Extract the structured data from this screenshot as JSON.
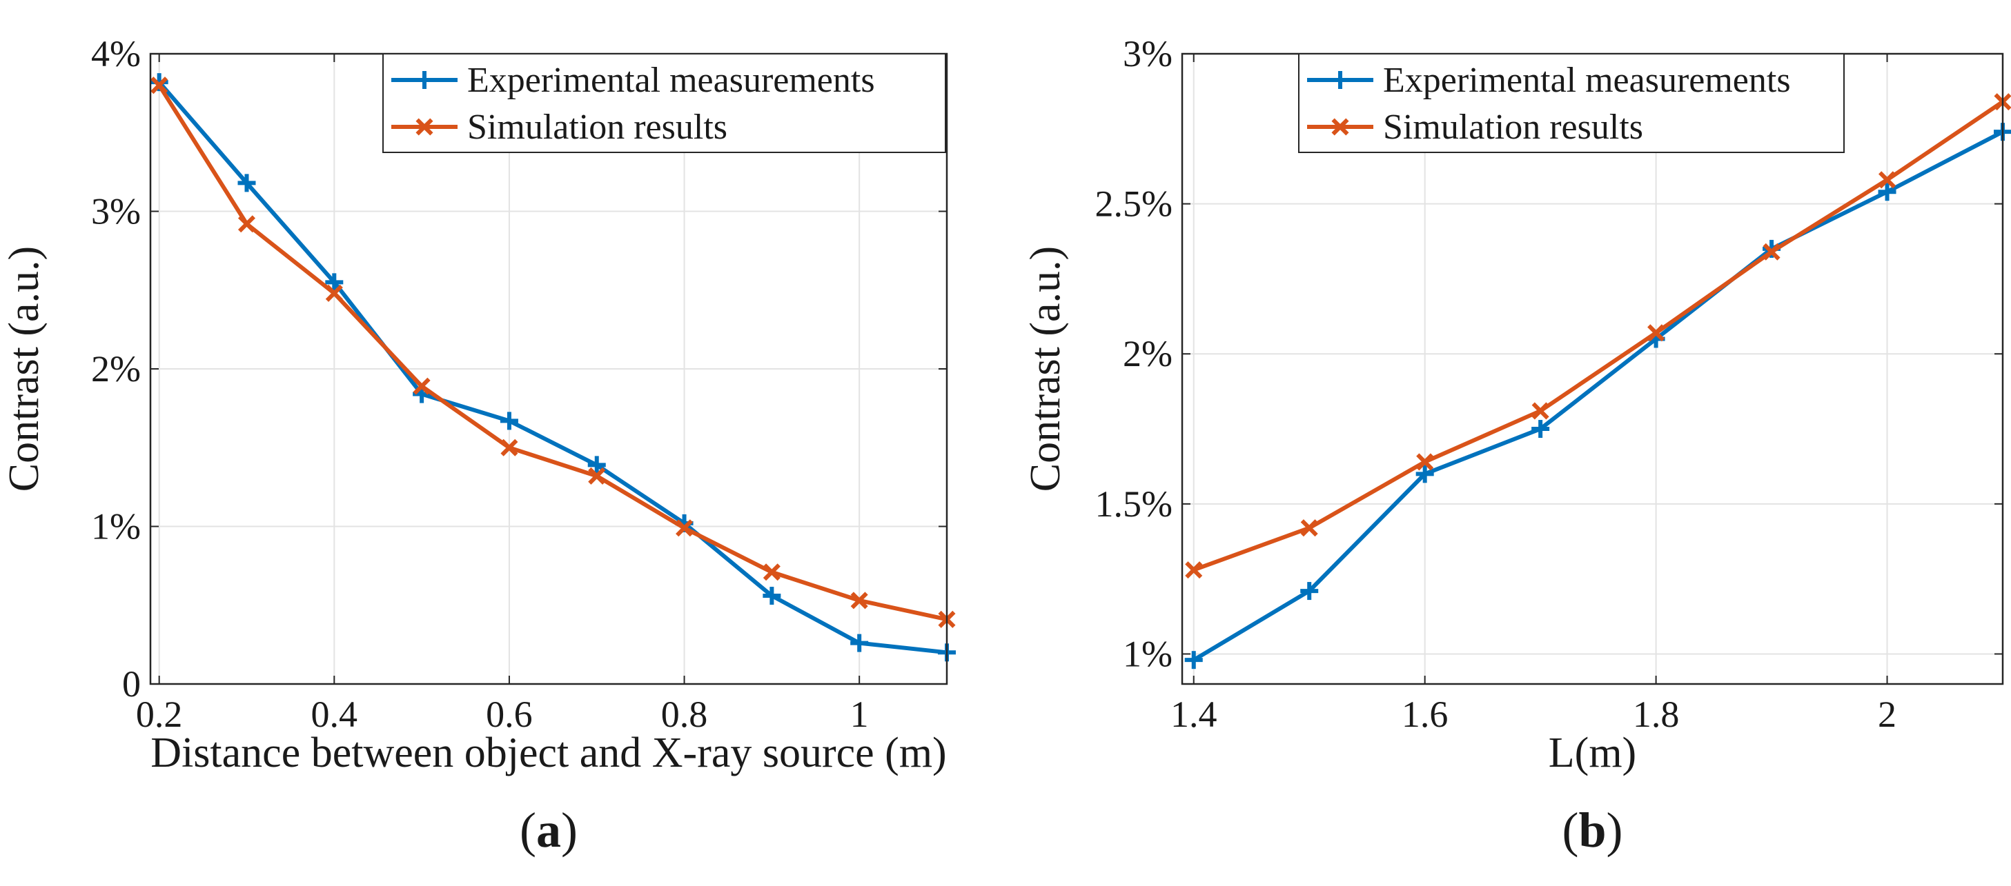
{
  "chart_data": [
    {
      "type": "line",
      "panel_label": "a",
      "xlabel": "Distance between object and X-ray source (m)",
      "ylabel": "Contrast (a.u.)",
      "x": [
        0.2,
        0.3,
        0.4,
        0.5,
        0.6,
        0.7,
        0.8,
        0.9,
        1.0,
        1.1
      ],
      "xlim": [
        0.19,
        1.1
      ],
      "ylim": [
        0,
        4
      ],
      "xticks": [
        0.2,
        0.4,
        0.6,
        0.8,
        1.0
      ],
      "xtick_labels": [
        "0.2",
        "0.4",
        "0.6",
        "0.8",
        "1"
      ],
      "yticks": [
        0,
        1,
        2,
        3,
        4
      ],
      "ytick_labels": [
        "0",
        "1%",
        "2%",
        "3%",
        "4%"
      ],
      "grid": true,
      "legend_position": "top-right",
      "series": [
        {
          "name": "Experimental measurements",
          "color": "#0072BD",
          "marker": "plus",
          "values": [
            3.82,
            3.18,
            2.55,
            1.84,
            1.67,
            1.39,
            1.02,
            0.56,
            0.26,
            0.2
          ]
        },
        {
          "name": "Simulation results",
          "color": "#D95319",
          "marker": "x",
          "values": [
            3.8,
            2.92,
            2.48,
            1.89,
            1.5,
            1.32,
            0.99,
            0.71,
            0.53,
            0.41
          ]
        }
      ]
    },
    {
      "type": "line",
      "panel_label": "b",
      "xlabel": "L(m)",
      "ylabel": "Contrast (a.u.)",
      "x": [
        1.4,
        1.5,
        1.6,
        1.7,
        1.8,
        1.9,
        2.0,
        2.1
      ],
      "xlim": [
        1.39,
        2.1
      ],
      "ylim": [
        0.9,
        3.0
      ],
      "xticks": [
        1.4,
        1.6,
        1.8,
        2.0
      ],
      "xtick_labels": [
        "1.4",
        "1.6",
        "1.8",
        "2"
      ],
      "yticks": [
        1.0,
        1.5,
        2.0,
        2.5,
        3.0
      ],
      "ytick_labels": [
        "1%",
        "1.5%",
        "2%",
        "2.5%",
        "3%"
      ],
      "grid": true,
      "legend_position": "top-left",
      "series": [
        {
          "name": "Experimental measurements",
          "color": "#0072BD",
          "marker": "plus",
          "values": [
            0.98,
            1.21,
            1.6,
            1.75,
            2.05,
            2.35,
            2.54,
            2.74
          ]
        },
        {
          "name": "Simulation results",
          "color": "#D95319",
          "marker": "x",
          "values": [
            1.28,
            1.42,
            1.64,
            1.81,
            2.07,
            2.34,
            2.58,
            2.84
          ]
        }
      ]
    }
  ]
}
